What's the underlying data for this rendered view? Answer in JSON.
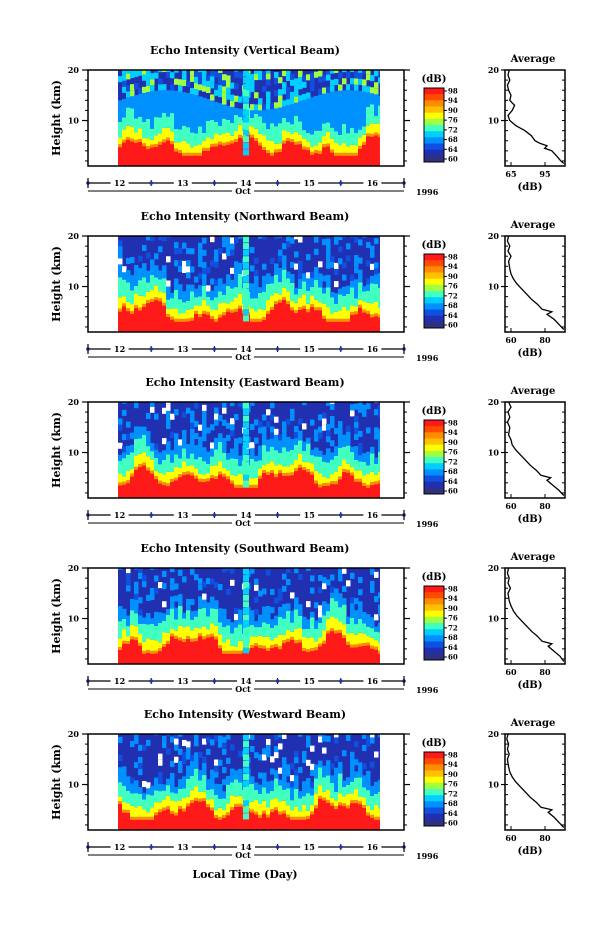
{
  "chart_data": {
    "type": "heatmap",
    "xlabel": "Local Time (Day)",
    "x_axis": {
      "ticks": [
        "12",
        "13",
        "14",
        "15",
        "16"
      ],
      "month": "Oct",
      "year": "1996",
      "range": [
        11.5,
        16.5
      ]
    },
    "ylabel": "Height (km)",
    "y_axis": {
      "ticks": [
        "20",
        "10"
      ],
      "range": [
        1,
        20
      ]
    },
    "colorbar": {
      "unit": "(dB)",
      "ticks": [
        "98",
        "94",
        "90",
        "76",
        "72",
        "68",
        "64",
        "60"
      ],
      "colors": [
        "#ff1a1a",
        "#ff4a00",
        "#ff8c00",
        "#ffc000",
        "#ffff00",
        "#a0ff40",
        "#40ffc0",
        "#00d0ff",
        "#0090ff",
        "#1050e0",
        "#2030b0",
        "#303080"
      ]
    },
    "panels": [
      {
        "title": "Echo Intensity (Vertical Beam)",
        "average": {
          "title": "Average",
          "xlabel": "(dB)",
          "xticks": [
            "65",
            "95"
          ],
          "yticks": [
            "20",
            "10"
          ],
          "profile": [
            [
              1.5,
              0.98
            ],
            [
              2,
              0.93
            ],
            [
              3,
              0.86
            ],
            [
              4,
              0.78
            ],
            [
              4.5,
              0.66
            ],
            [
              5,
              0.7
            ],
            [
              5.5,
              0.58
            ],
            [
              6,
              0.5
            ],
            [
              7,
              0.44
            ],
            [
              8,
              0.33
            ],
            [
              9,
              0.18
            ],
            [
              10,
              0.08
            ],
            [
              11,
              0.05
            ],
            [
              12,
              0.12
            ],
            [
              13,
              0.16
            ],
            [
              14,
              0.08
            ],
            [
              15,
              0.1
            ],
            [
              16,
              0.06
            ],
            [
              17,
              0.04
            ],
            [
              18,
              0.08
            ],
            [
              19,
              0.05
            ],
            [
              20,
              0.07
            ]
          ]
        }
      },
      {
        "title": "Echo Intensity (Northward Beam)",
        "average": {
          "title": "Average",
          "xlabel": "(dB)",
          "xticks": [
            "60",
            "80"
          ],
          "yticks": [
            "20",
            "10"
          ],
          "profile": [
            [
              1.5,
              0.98
            ],
            [
              2.5,
              0.9
            ],
            [
              3.5,
              0.82
            ],
            [
              4.5,
              0.7
            ],
            [
              5,
              0.78
            ],
            [
              5.5,
              0.62
            ],
            [
              6.5,
              0.54
            ],
            [
              7.5,
              0.44
            ],
            [
              8.5,
              0.36
            ],
            [
              9.5,
              0.28
            ],
            [
              10.5,
              0.2
            ],
            [
              11.5,
              0.14
            ],
            [
              12.5,
              0.1
            ],
            [
              13.5,
              0.08
            ],
            [
              15,
              0.06
            ],
            [
              16,
              0.1
            ],
            [
              17,
              0.05
            ],
            [
              18,
              0.08
            ],
            [
              19,
              0.04
            ],
            [
              20,
              0.06
            ]
          ]
        }
      },
      {
        "title": "Echo Intensity (Eastward Beam)",
        "average": {
          "title": "Average",
          "xlabel": "(dB)",
          "xticks": [
            "60",
            "80"
          ],
          "yticks": [
            "20",
            "10"
          ],
          "profile": [
            [
              1.5,
              0.98
            ],
            [
              2.5,
              0.9
            ],
            [
              3.5,
              0.8
            ],
            [
              4.5,
              0.7
            ],
            [
              5,
              0.76
            ],
            [
              5.5,
              0.6
            ],
            [
              6.5,
              0.52
            ],
            [
              7.5,
              0.42
            ],
            [
              8.5,
              0.34
            ],
            [
              9.5,
              0.26
            ],
            [
              10.5,
              0.18
            ],
            [
              11.5,
              0.12
            ],
            [
              12.5,
              0.1
            ],
            [
              13.5,
              0.06
            ],
            [
              15,
              0.08
            ],
            [
              16,
              0.04
            ],
            [
              17,
              0.08
            ],
            [
              18,
              0.05
            ],
            [
              19,
              0.1
            ],
            [
              20,
              0.06
            ]
          ]
        }
      },
      {
        "title": "Echo Intensity (Southward Beam)",
        "average": {
          "title": "Average",
          "xlabel": "(dB)",
          "xticks": [
            "60",
            "80"
          ],
          "yticks": [
            "20",
            "10"
          ],
          "profile": [
            [
              1.5,
              0.98
            ],
            [
              2.5,
              0.92
            ],
            [
              3.5,
              0.82
            ],
            [
              4.5,
              0.72
            ],
            [
              5,
              0.78
            ],
            [
              5.5,
              0.62
            ],
            [
              6.5,
              0.54
            ],
            [
              7.5,
              0.44
            ],
            [
              8.5,
              0.36
            ],
            [
              9.5,
              0.28
            ],
            [
              10.5,
              0.2
            ],
            [
              11.5,
              0.14
            ],
            [
              12.5,
              0.1
            ],
            [
              13.5,
              0.07
            ],
            [
              15,
              0.05
            ],
            [
              16,
              0.09
            ],
            [
              17,
              0.05
            ],
            [
              18,
              0.07
            ],
            [
              19,
              0.04
            ],
            [
              20,
              0.06
            ]
          ]
        }
      },
      {
        "title": "Echo Intensity (Westward Beam)",
        "average": {
          "title": "Average",
          "xlabel": "(dB)",
          "xticks": [
            "60",
            "80"
          ],
          "yticks": [
            "20",
            "10"
          ],
          "profile": [
            [
              1.5,
              0.98
            ],
            [
              2.5,
              0.9
            ],
            [
              3.5,
              0.82
            ],
            [
              4.5,
              0.72
            ],
            [
              5,
              0.78
            ],
            [
              5.5,
              0.6
            ],
            [
              6.5,
              0.52
            ],
            [
              7.5,
              0.42
            ],
            [
              8.5,
              0.34
            ],
            [
              9.5,
              0.26
            ],
            [
              10.5,
              0.18
            ],
            [
              11.5,
              0.12
            ],
            [
              12.5,
              0.08
            ],
            [
              13.5,
              0.06
            ],
            [
              15,
              0.04
            ],
            [
              16,
              0.07
            ],
            [
              17,
              0.04
            ],
            [
              18,
              0.06
            ],
            [
              19,
              0.03
            ],
            [
              20,
              0.05
            ]
          ]
        }
      }
    ],
    "grid": false,
    "legend": "right"
  }
}
